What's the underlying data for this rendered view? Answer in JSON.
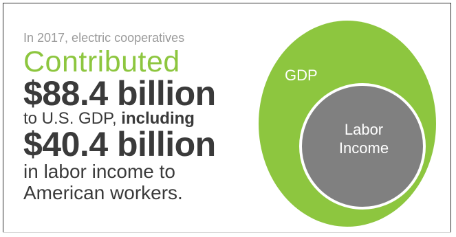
{
  "intro_text": "In 2017, electric cooperatives",
  "headline": "Contributed",
  "gdp_amount": "$88.4 billion",
  "gdp_line_prefix": "to U.S. GDP, ",
  "gdp_line_emphasis": "including",
  "labor_amount": "$40.4 billion",
  "tail_line_1": "in labor income to",
  "tail_line_2": "American workers.",
  "diagram": {
    "outer_label": "GDP",
    "inner_label_line_1": "Labor",
    "inner_label_line_2": "Income",
    "outer_color": "#8dc63f",
    "inner_color": "#808080",
    "inner_border_color": "#ffffff"
  },
  "colors": {
    "accent_green": "#8dc63f",
    "text_dark": "#3a3a3a",
    "text_grey": "#9a9a9a"
  }
}
